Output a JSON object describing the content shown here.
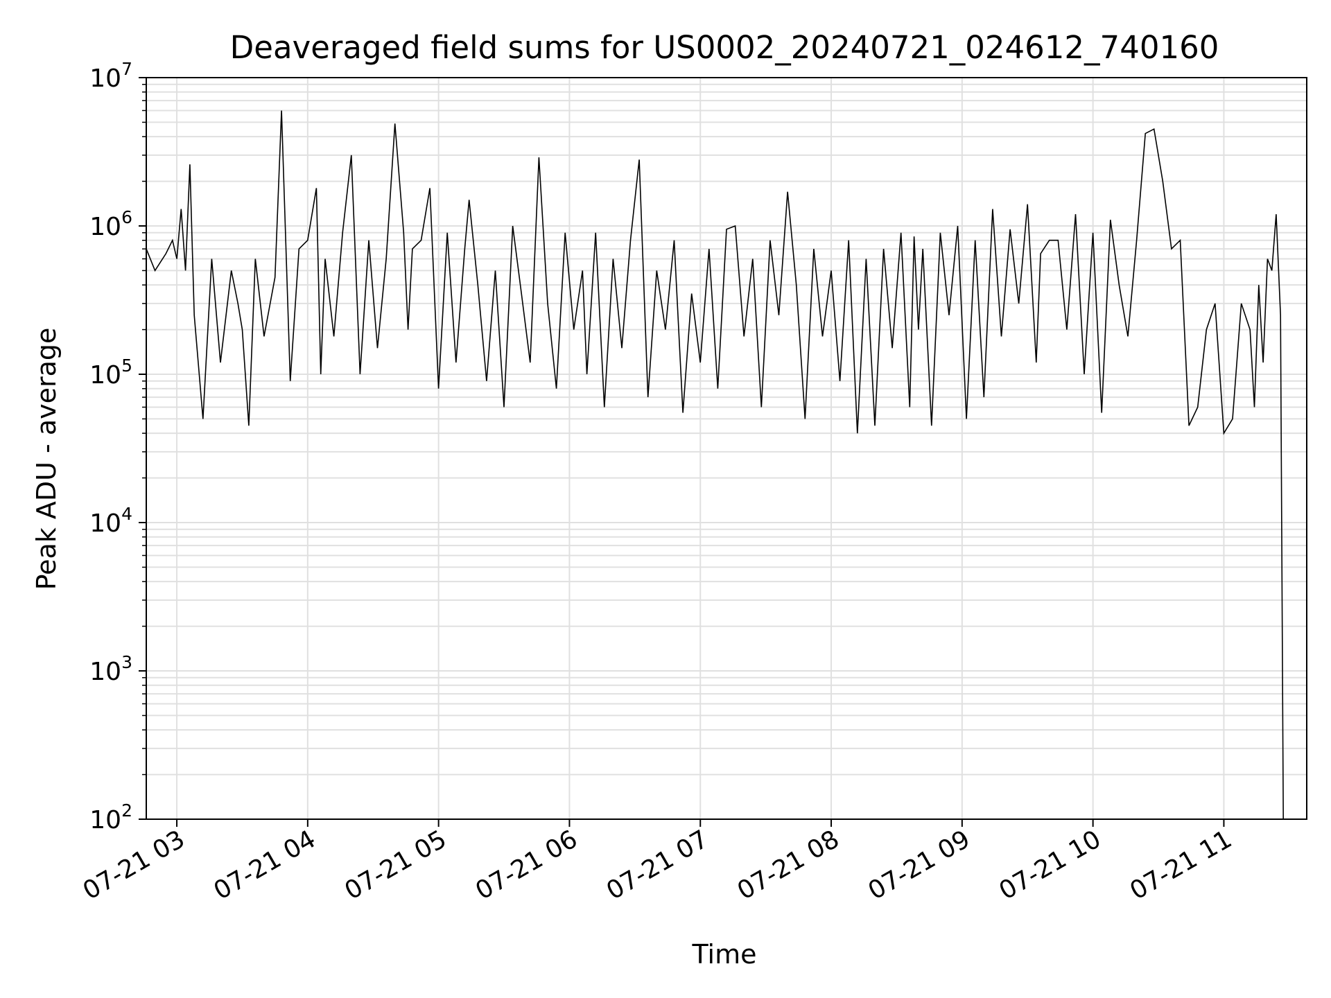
{
  "chart_data": {
    "type": "line",
    "title": "Deaveraged field sums for US0002_20240721_024612_740160",
    "xlabel": "Time",
    "ylabel": "Peak ADU - average",
    "yscale": "log",
    "ylim": [
      100,
      10000000
    ],
    "xlim": [
      "2024-07-21 02:46",
      "2024-07-21 11:38"
    ],
    "x_ticks": [
      {
        "t": "2024-07-21 03:00",
        "label": "07-21 03"
      },
      {
        "t": "2024-07-21 04:00",
        "label": "07-21 04"
      },
      {
        "t": "2024-07-21 05:00",
        "label": "07-21 05"
      },
      {
        "t": "2024-07-21 06:00",
        "label": "07-21 06"
      },
      {
        "t": "2024-07-21 07:00",
        "label": "07-21 07"
      },
      {
        "t": "2024-07-21 08:00",
        "label": "07-21 08"
      },
      {
        "t": "2024-07-21 09:00",
        "label": "07-21 09"
      },
      {
        "t": "2024-07-21 10:00",
        "label": "07-21 10"
      },
      {
        "t": "2024-07-21 11:00",
        "label": "07-21 11"
      }
    ],
    "y_ticks": [
      {
        "value": 100,
        "base": "10",
        "exp": "2"
      },
      {
        "value": 1000,
        "base": "10",
        "exp": "3"
      },
      {
        "value": 10000,
        "base": "10",
        "exp": "4"
      },
      {
        "value": 100000,
        "base": "10",
        "exp": "5"
      },
      {
        "value": 1000000,
        "base": "10",
        "exp": "6"
      },
      {
        "value": 10000000,
        "base": "10",
        "exp": "7"
      }
    ],
    "grid": true,
    "line_color": "#000000",
    "grid_color": "#e0e0e0",
    "series": [
      {
        "x": [
          "2024-07-21 02:46",
          "2024-07-21 02:50",
          "2024-07-21 02:55",
          "2024-07-21 02:58",
          "2024-07-21 03:00",
          "2024-07-21 03:02",
          "2024-07-21 03:04",
          "2024-07-21 03:06",
          "2024-07-21 03:08",
          "2024-07-21 03:12",
          "2024-07-21 03:16",
          "2024-07-21 03:20",
          "2024-07-21 03:25",
          "2024-07-21 03:28",
          "2024-07-21 03:30",
          "2024-07-21 03:33",
          "2024-07-21 03:36",
          "2024-07-21 03:40",
          "2024-07-21 03:45",
          "2024-07-21 03:48",
          "2024-07-21 03:52",
          "2024-07-21 03:56",
          "2024-07-21 04:00",
          "2024-07-21 04:04",
          "2024-07-21 04:06",
          "2024-07-21 04:08",
          "2024-07-21 04:12",
          "2024-07-21 04:16",
          "2024-07-21 04:20",
          "2024-07-21 04:24",
          "2024-07-21 04:28",
          "2024-07-21 04:32",
          "2024-07-21 04:36",
          "2024-07-21 04:40",
          "2024-07-21 04:44",
          "2024-07-21 04:46",
          "2024-07-21 04:48",
          "2024-07-21 04:52",
          "2024-07-21 04:56",
          "2024-07-21 05:00",
          "2024-07-21 05:04",
          "2024-07-21 05:08",
          "2024-07-21 05:12",
          "2024-07-21 05:14",
          "2024-07-21 05:18",
          "2024-07-21 05:22",
          "2024-07-21 05:26",
          "2024-07-21 05:30",
          "2024-07-21 05:34",
          "2024-07-21 05:38",
          "2024-07-21 05:42",
          "2024-07-21 05:46",
          "2024-07-21 05:50",
          "2024-07-21 05:54",
          "2024-07-21 05:58",
          "2024-07-21 06:02",
          "2024-07-21 06:06",
          "2024-07-21 06:08",
          "2024-07-21 06:12",
          "2024-07-21 06:16",
          "2024-07-21 06:20",
          "2024-07-21 06:24",
          "2024-07-21 06:28",
          "2024-07-21 06:32",
          "2024-07-21 06:36",
          "2024-07-21 06:40",
          "2024-07-21 06:44",
          "2024-07-21 06:48",
          "2024-07-21 06:52",
          "2024-07-21 06:56",
          "2024-07-21 07:00",
          "2024-07-21 07:04",
          "2024-07-21 07:08",
          "2024-07-21 07:12",
          "2024-07-21 07:16",
          "2024-07-21 07:20",
          "2024-07-21 07:24",
          "2024-07-21 07:28",
          "2024-07-21 07:32",
          "2024-07-21 07:36",
          "2024-07-21 07:40",
          "2024-07-21 07:44",
          "2024-07-21 07:48",
          "2024-07-21 07:52",
          "2024-07-21 07:56",
          "2024-07-21 08:00",
          "2024-07-21 08:04",
          "2024-07-21 08:08",
          "2024-07-21 08:12",
          "2024-07-21 08:16",
          "2024-07-21 08:20",
          "2024-07-21 08:24",
          "2024-07-21 08:28",
          "2024-07-21 08:32",
          "2024-07-21 08:36",
          "2024-07-21 08:38",
          "2024-07-21 08:40",
          "2024-07-21 08:42",
          "2024-07-21 08:46",
          "2024-07-21 08:50",
          "2024-07-21 08:54",
          "2024-07-21 08:58",
          "2024-07-21 09:02",
          "2024-07-21 09:06",
          "2024-07-21 09:10",
          "2024-07-21 09:14",
          "2024-07-21 09:18",
          "2024-07-21 09:22",
          "2024-07-21 09:26",
          "2024-07-21 09:30",
          "2024-07-21 09:34",
          "2024-07-21 09:36",
          "2024-07-21 09:40",
          "2024-07-21 09:44",
          "2024-07-21 09:48",
          "2024-07-21 09:52",
          "2024-07-21 09:56",
          "2024-07-21 10:00",
          "2024-07-21 10:04",
          "2024-07-21 10:08",
          "2024-07-21 10:12",
          "2024-07-21 10:16",
          "2024-07-21 10:20",
          "2024-07-21 10:24",
          "2024-07-21 10:28",
          "2024-07-21 10:32",
          "2024-07-21 10:36",
          "2024-07-21 10:40",
          "2024-07-21 10:44",
          "2024-07-21 10:48",
          "2024-07-21 10:52",
          "2024-07-21 10:56",
          "2024-07-21 11:00",
          "2024-07-21 11:04",
          "2024-07-21 11:08",
          "2024-07-21 11:12",
          "2024-07-21 11:14",
          "2024-07-21 11:16",
          "2024-07-21 11:18",
          "2024-07-21 11:20",
          "2024-07-21 11:22",
          "2024-07-21 11:24",
          "2024-07-21 11:26"
        ],
        "values": [
          700000,
          500000,
          650000,
          800000,
          600000,
          1300000,
          500000,
          2600000,
          250000,
          50000,
          600000,
          120000,
          500000,
          300000,
          200000,
          45000,
          600000,
          180000,
          450000,
          6000000,
          90000,
          700000,
          800000,
          1800000,
          100000,
          600000,
          180000,
          900000,
          3000000,
          100000,
          800000,
          150000,
          600000,
          4900000,
          900000,
          200000,
          700000,
          800000,
          1800000,
          80000,
          900000,
          120000,
          700000,
          1500000,
          400000,
          90000,
          500000,
          60000,
          1000000,
          350000,
          120000,
          2900000,
          300000,
          80000,
          900000,
          200000,
          500000,
          100000,
          900000,
          60000,
          600000,
          150000,
          800000,
          2800000,
          70000,
          500000,
          200000,
          800000,
          55000,
          350000,
          120000,
          700000,
          80000,
          950000,
          1000000,
          180000,
          600000,
          60000,
          800000,
          250000,
          1700000,
          400000,
          50000,
          700000,
          180000,
          500000,
          90000,
          800000,
          40000,
          600000,
          45000,
          700000,
          150000,
          900000,
          60000,
          850000,
          200000,
          700000,
          45000,
          900000,
          250000,
          1000000,
          50000,
          800000,
          70000,
          1300000,
          180000,
          950000,
          300000,
          1400000,
          120000,
          650000,
          800000,
          800000,
          200000,
          1200000,
          100000,
          900000,
          55000,
          1100000,
          400000,
          180000,
          800000,
          4200000,
          4500000,
          2000000,
          700000,
          800000,
          45000,
          60000,
          200000,
          300000,
          40000,
          50000,
          300000,
          200000,
          60000,
          400000,
          120000,
          600000,
          500000,
          1200000,
          250000
        ]
      }
    ]
  }
}
